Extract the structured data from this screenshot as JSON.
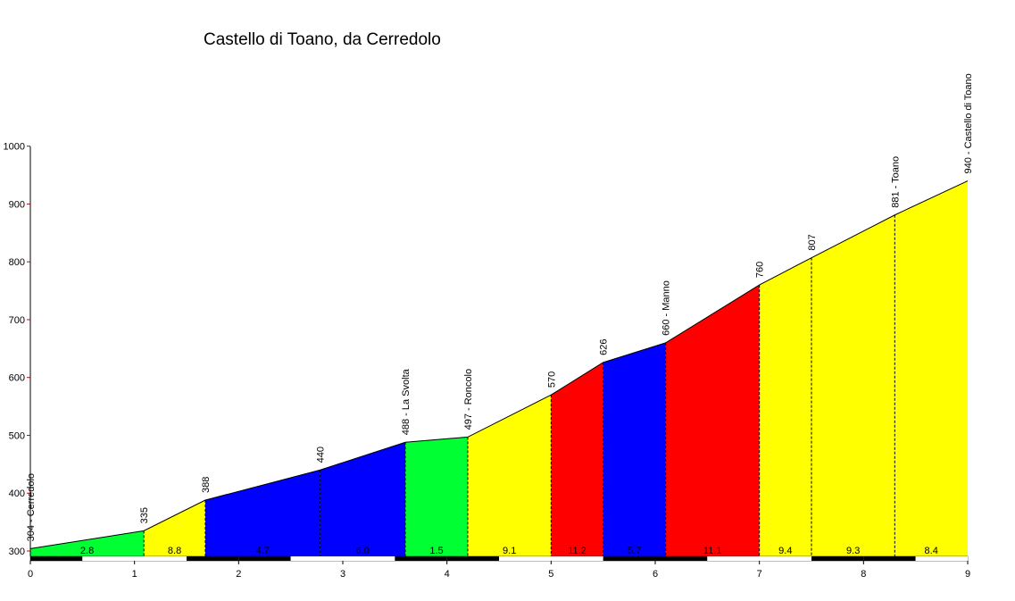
{
  "chart_data": {
    "type": "area",
    "title": "Castello di Toano, da Cerredolo",
    "xlabel": "",
    "ylabel": "",
    "xlim": [
      0,
      9
    ],
    "ylim": [
      290,
      1000
    ],
    "x_ticks": [
      "0",
      "1",
      "2",
      "3",
      "4",
      "5",
      "6",
      "7",
      "8",
      "9"
    ],
    "y_ticks": [
      "300",
      "400",
      "500",
      "600",
      "700",
      "800",
      "900",
      "1000"
    ],
    "grid": false,
    "points": [
      {
        "x": 0,
        "y": 304,
        "label": "304 - Cerredolo"
      },
      {
        "x": 1.09,
        "y": 335,
        "label": "335"
      },
      {
        "x": 1.68,
        "y": 388,
        "label": "388"
      },
      {
        "x": 2.78,
        "y": 440,
        "label": "440"
      },
      {
        "x": 3.6,
        "y": 488,
        "label": "488 - La Svolta"
      },
      {
        "x": 4.2,
        "y": 497,
        "label": "497 - Roncolo"
      },
      {
        "x": 5.0,
        "y": 570,
        "label": "570"
      },
      {
        "x": 5.5,
        "y": 626,
        "label": "626"
      },
      {
        "x": 6.1,
        "y": 660,
        "label": "660 - Manno"
      },
      {
        "x": 7.0,
        "y": 760,
        "label": "760"
      },
      {
        "x": 7.5,
        "y": 807,
        "label": "807"
      },
      {
        "x": 8.3,
        "y": 881,
        "label": "881 - Toano"
      },
      {
        "x": 9.0,
        "y": 940,
        "label": "940 - Castello di Toano"
      }
    ],
    "segments": [
      {
        "from": 0,
        "to": 1.09,
        "gradient": "2.8",
        "color": "#00ff33"
      },
      {
        "from": 1.09,
        "to": 1.68,
        "gradient": "8.8",
        "color": "#ffff00"
      },
      {
        "from": 1.68,
        "to": 2.78,
        "gradient": "4.7",
        "color": "#0000ff"
      },
      {
        "from": 2.78,
        "to": 3.6,
        "gradient": "6.0",
        "color": "#0000ff"
      },
      {
        "from": 3.6,
        "to": 4.2,
        "gradient": "1.5",
        "color": "#00ff33"
      },
      {
        "from": 4.2,
        "to": 5.0,
        "gradient": "9.1",
        "color": "#ffff00"
      },
      {
        "from": 5.0,
        "to": 5.5,
        "gradient": "11.2",
        "color": "#ff0000"
      },
      {
        "from": 5.5,
        "to": 6.1,
        "gradient": "5.7",
        "color": "#0000ff"
      },
      {
        "from": 6.1,
        "to": 7.0,
        "gradient": "11.1",
        "color": "#ff0000"
      },
      {
        "from": 7.0,
        "to": 7.5,
        "gradient": "9.4",
        "color": "#ffff00"
      },
      {
        "from": 7.5,
        "to": 8.3,
        "gradient": "9.3",
        "color": "#ffff00"
      },
      {
        "from": 8.3,
        "to": 9.0,
        "gradient": "8.4",
        "color": "#ffff00"
      }
    ]
  }
}
